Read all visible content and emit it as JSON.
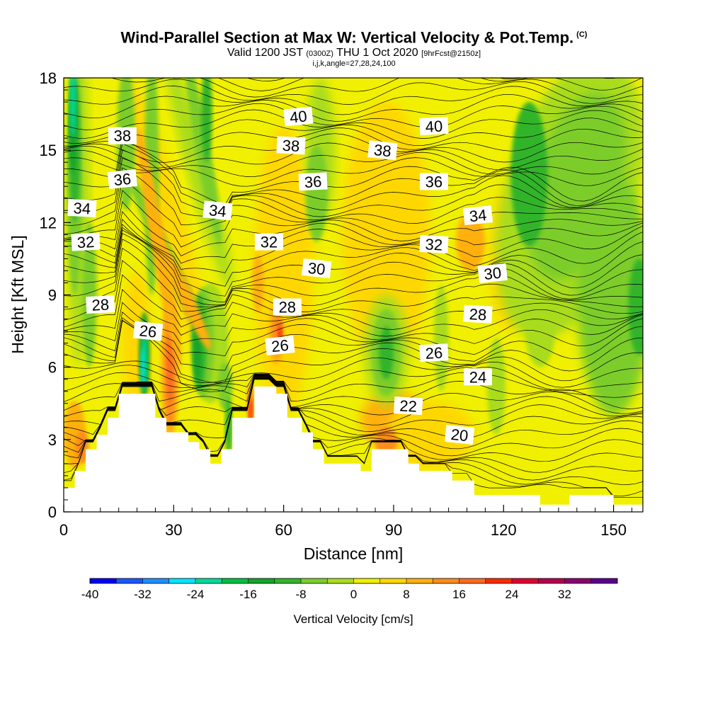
{
  "header": {
    "title": "Wind-Parallel Section at Max W: Vertical Velocity & Pot.Temp.",
    "title_mark": "(C)",
    "valid_prefix": "Valid 1200 JST",
    "valid_utc": "(0300Z)",
    "valid_date": "THU 1 Oct 2020",
    "forecast_info": "[9hrFcst@2150z]",
    "indices": "i,j,k,angle=27,28,24,100"
  },
  "chart_data": {
    "type": "heatmap",
    "title": "Wind-Parallel Section at Max W: Vertical Velocity & Pot.Temp.",
    "xlabel": "Distance [nm]",
    "ylabel": "Height [Kft MSL]",
    "xlim": [
      0,
      158
    ],
    "ylim": [
      0,
      18
    ],
    "xticks": [
      0,
      30,
      60,
      90,
      120,
      150
    ],
    "yticks": [
      0,
      3,
      6,
      9,
      12,
      15,
      18
    ],
    "colorbar": {
      "label": "Vertical Velocity [cm/s]",
      "levels": [
        -40,
        -36,
        -32,
        -28,
        -24,
        -20,
        -16,
        -12,
        -8,
        -4,
        0,
        4,
        8,
        12,
        16,
        20,
        24,
        28,
        32,
        36
      ],
      "tick_labels": [
        "-40",
        "-32",
        "-24",
        "-16",
        "-8",
        "0",
        "8",
        "16",
        "24",
        "32"
      ],
      "colors": [
        "#0000f0",
        "#1a58ff",
        "#1e90ff",
        "#00e5ff",
        "#00d99a",
        "#00c040",
        "#13a32a",
        "#33b42b",
        "#7ccd2c",
        "#a9dc1e",
        "#f0f000",
        "#ffd700",
        "#ffb010",
        "#ff8c1a",
        "#ff6a1e",
        "#ff2a00",
        "#e00030",
        "#b4004e",
        "#8b0070",
        "#5a0090"
      ]
    },
    "theta_contour_labels": [
      {
        "text": "40",
        "x": 64,
        "y": 16.4
      },
      {
        "text": "40",
        "x": 101,
        "y": 16.0
      },
      {
        "text": "38",
        "x": 16,
        "y": 15.6
      },
      {
        "text": "38",
        "x": 62,
        "y": 15.2
      },
      {
        "text": "38",
        "x": 87,
        "y": 15.0
      },
      {
        "text": "36",
        "x": 16,
        "y": 13.8
      },
      {
        "text": "36",
        "x": 68,
        "y": 13.7
      },
      {
        "text": "36",
        "x": 101,
        "y": 13.7
      },
      {
        "text": "34",
        "x": 5,
        "y": 12.6
      },
      {
        "text": "34",
        "x": 42,
        "y": 12.5
      },
      {
        "text": "34",
        "x": 113,
        "y": 12.3
      },
      {
        "text": "32",
        "x": 6,
        "y": 11.2
      },
      {
        "text": "32",
        "x": 56,
        "y": 11.2
      },
      {
        "text": "32",
        "x": 101,
        "y": 11.1
      },
      {
        "text": "30",
        "x": 69,
        "y": 10.1
      },
      {
        "text": "30",
        "x": 117,
        "y": 9.9
      },
      {
        "text": "28",
        "x": 10,
        "y": 8.6
      },
      {
        "text": "28",
        "x": 61,
        "y": 8.5
      },
      {
        "text": "28",
        "x": 113,
        "y": 8.2
      },
      {
        "text": "26",
        "x": 23,
        "y": 7.5
      },
      {
        "text": "26",
        "x": 59,
        "y": 6.9
      },
      {
        "text": "26",
        "x": 101,
        "y": 6.6
      },
      {
        "text": "24",
        "x": 113,
        "y": 5.6
      },
      {
        "text": "22",
        "x": 94,
        "y": 4.4
      },
      {
        "text": "20",
        "x": 108,
        "y": 3.2
      }
    ],
    "terrain_kft": [
      [
        0,
        1.0
      ],
      [
        3,
        1.0
      ],
      [
        3,
        1.7
      ],
      [
        6,
        1.7
      ],
      [
        6,
        2.6
      ],
      [
        9,
        2.6
      ],
      [
        9,
        3.2
      ],
      [
        12,
        3.2
      ],
      [
        12,
        3.9
      ],
      [
        15,
        3.9
      ],
      [
        15,
        4.9
      ],
      [
        25,
        4.9
      ],
      [
        25,
        3.9
      ],
      [
        28,
        3.9
      ],
      [
        28,
        3.3
      ],
      [
        34,
        3.3
      ],
      [
        34,
        2.9
      ],
      [
        37,
        2.9
      ],
      [
        37,
        2.6
      ],
      [
        40,
        2.6
      ],
      [
        40,
        2.0
      ],
      [
        43,
        2.0
      ],
      [
        43,
        2.6
      ],
      [
        46,
        2.6
      ],
      [
        46,
        3.9
      ],
      [
        52,
        3.9
      ],
      [
        52,
        5.2
      ],
      [
        58,
        5.2
      ],
      [
        58,
        4.9
      ],
      [
        61,
        4.9
      ],
      [
        61,
        3.9
      ],
      [
        65,
        3.9
      ],
      [
        65,
        3.3
      ],
      [
        68,
        3.3
      ],
      [
        68,
        2.6
      ],
      [
        71,
        2.6
      ],
      [
        71,
        2.0
      ],
      [
        81,
        2.0
      ],
      [
        81,
        1.7
      ],
      [
        84,
        1.7
      ],
      [
        84,
        2.6
      ],
      [
        94,
        2.6
      ],
      [
        94,
        2.0
      ],
      [
        97,
        2.0
      ],
      [
        97,
        1.7
      ],
      [
        106,
        1.7
      ],
      [
        106,
        1.3
      ],
      [
        112,
        1.3
      ],
      [
        112,
        0.7
      ],
      [
        130,
        0.7
      ],
      [
        130,
        0.3
      ],
      [
        138,
        0.3
      ],
      [
        138,
        0.7
      ],
      [
        150,
        0.7
      ],
      [
        150,
        0.3
      ],
      [
        158,
        0.3
      ]
    ]
  }
}
